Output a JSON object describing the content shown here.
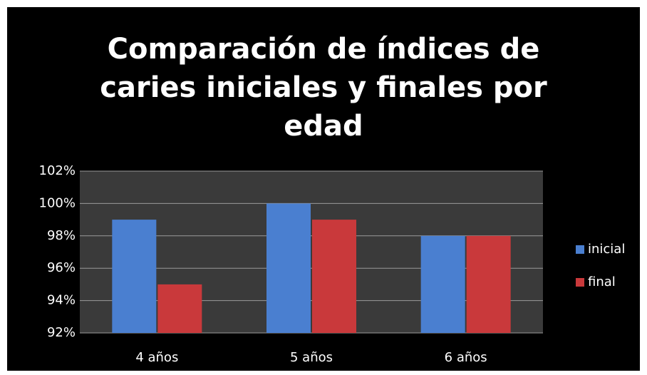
{
  "chart_data": {
    "type": "bar",
    "title": "Comparación de índices de caries iniciales y finales por edad",
    "categories": [
      "4 años",
      "5 años",
      "6 años"
    ],
    "series": [
      {
        "name": "inicial",
        "color": "#4a7fd0",
        "values": [
          99,
          100,
          98
        ]
      },
      {
        "name": "final",
        "color": "#c9393b",
        "values": [
          95,
          99,
          98
        ]
      }
    ],
    "ylim": [
      92,
      102
    ],
    "yticks": [
      {
        "value": 92,
        "label": "92%"
      },
      {
        "value": 94,
        "label": "94%"
      },
      {
        "value": 96,
        "label": "96%"
      },
      {
        "value": 98,
        "label": "98%"
      },
      {
        "value": 100,
        "label": "100%"
      },
      {
        "value": 102,
        "label": "102%"
      }
    ],
    "grid": true,
    "legend": "right"
  }
}
